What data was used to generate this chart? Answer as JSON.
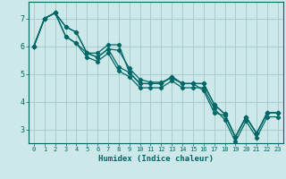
{
  "xlabel": "Humidex (Indice chaleur)",
  "background_color": "#cce8e8",
  "grid_color": "#aacccc",
  "line_color": "#006666",
  "xlim": [
    -0.5,
    23.5
  ],
  "ylim": [
    2.5,
    7.6
  ],
  "yticks": [
    3,
    4,
    5,
    6,
    7
  ],
  "xticks": [
    0,
    1,
    2,
    3,
    4,
    5,
    6,
    7,
    8,
    9,
    10,
    11,
    12,
    13,
    14,
    15,
    16,
    17,
    18,
    19,
    20,
    21,
    22,
    23
  ],
  "series": [
    [
      6.0,
      7.0,
      7.2,
      6.7,
      6.5,
      5.75,
      5.75,
      6.05,
      6.05,
      5.05,
      4.65,
      4.65,
      4.65,
      4.9,
      4.65,
      4.65,
      4.65,
      3.9,
      3.55,
      2.72,
      3.45,
      2.85,
      3.6,
      3.6
    ],
    [
      6.0,
      7.0,
      7.2,
      6.7,
      6.5,
      5.75,
      5.6,
      5.9,
      5.85,
      5.2,
      4.8,
      4.7,
      4.7,
      4.85,
      4.65,
      4.65,
      4.4,
      3.6,
      3.5,
      2.72,
      3.45,
      2.85,
      3.6,
      3.6
    ],
    [
      6.0,
      7.0,
      7.2,
      6.35,
      6.1,
      5.75,
      5.6,
      5.9,
      5.25,
      5.05,
      4.65,
      4.65,
      4.65,
      4.9,
      4.65,
      4.65,
      4.65,
      3.9,
      3.55,
      2.72,
      3.45,
      2.85,
      3.6,
      3.6
    ],
    [
      6.0,
      7.0,
      7.2,
      6.35,
      6.1,
      5.6,
      5.45,
      5.75,
      5.1,
      4.9,
      4.5,
      4.5,
      4.5,
      4.75,
      4.5,
      4.5,
      4.5,
      3.75,
      3.35,
      2.55,
      3.3,
      2.7,
      3.45,
      3.45
    ]
  ]
}
